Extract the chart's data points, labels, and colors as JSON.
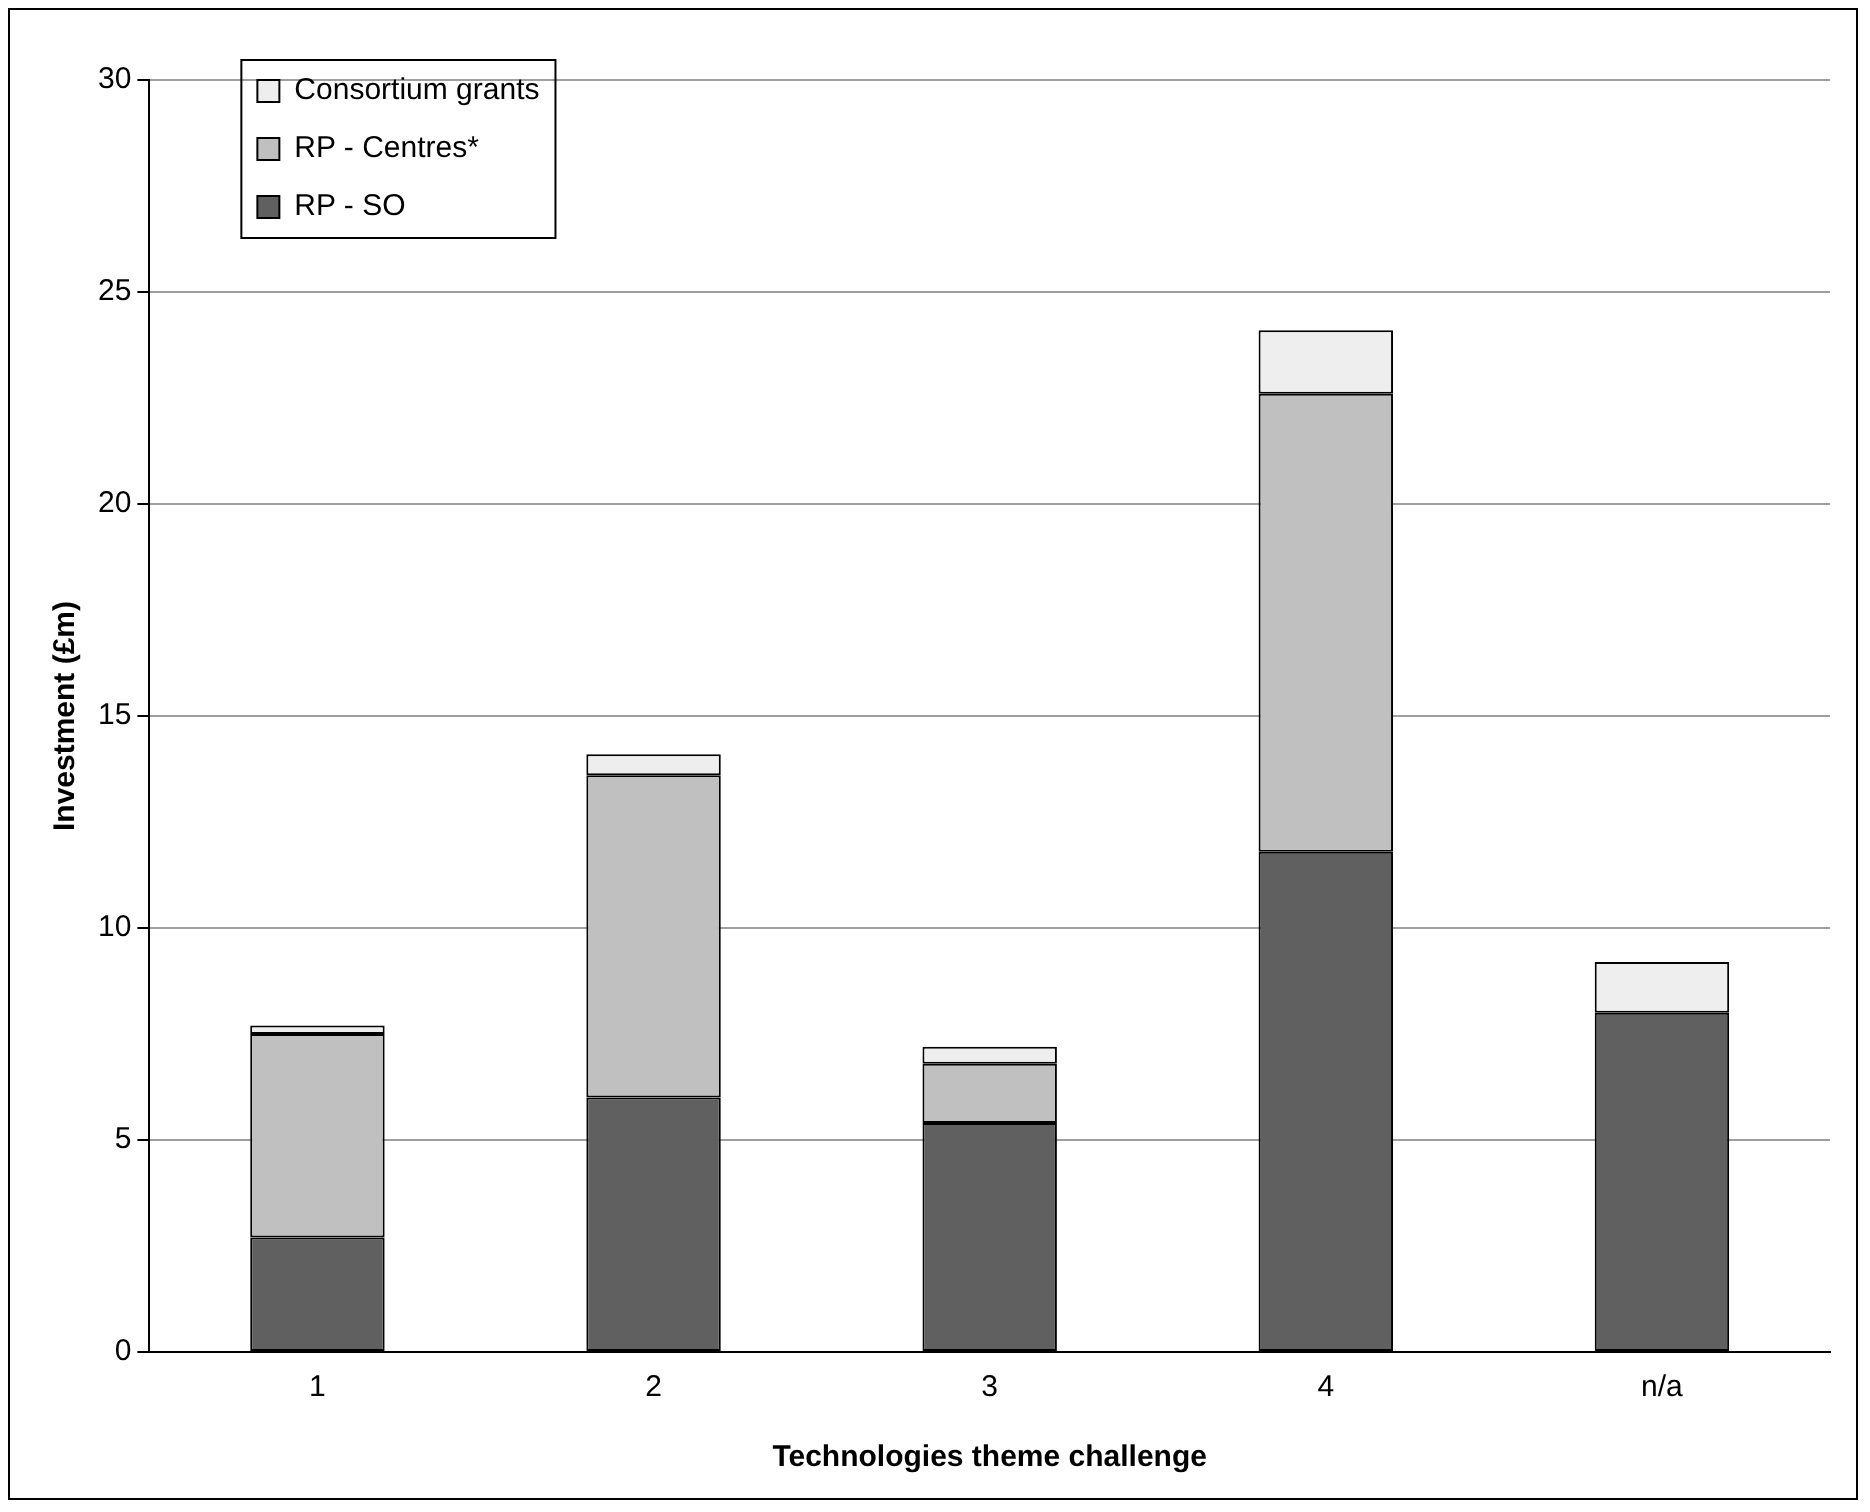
{
  "chart_data": {
    "type": "bar",
    "stacked": true,
    "xlabel": "Technologies theme challenge",
    "ylabel": "Investment (£m)",
    "categories": [
      "1",
      "2",
      "3",
      "4",
      "n/a"
    ],
    "series": [
      {
        "name": "RP - SO",
        "color": "#606060",
        "values": [
          2.7,
          6.0,
          5.4,
          11.8,
          8.0
        ]
      },
      {
        "name": "RP - Centres*",
        "color": "#c0c0c0",
        "values": [
          4.8,
          7.6,
          1.4,
          10.8,
          0
        ]
      },
      {
        "name": "Consortium grants",
        "color": "#eeeeee",
        "values": [
          0.2,
          0.5,
          0.4,
          1.5,
          1.2
        ]
      }
    ],
    "ylim": [
      0,
      30
    ],
    "yticks": [
      0,
      5,
      10,
      15,
      20,
      25,
      30
    ],
    "grid": "y",
    "legend": "top left"
  }
}
